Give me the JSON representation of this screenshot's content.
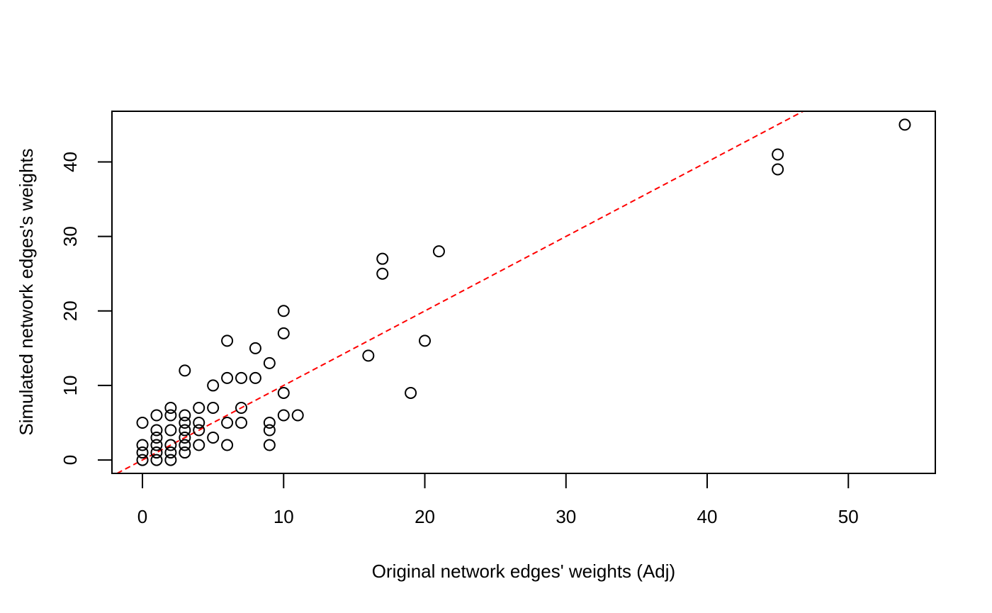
{
  "chart_data": {
    "type": "scatter",
    "title": "",
    "xlabel": "Original network edges' weights (Adj)",
    "ylabel": "Simulated network edges's weights",
    "xlim": [
      -2.16,
      56.16
    ],
    "ylim": [
      -1.8,
      46.8
    ],
    "x_ticks": [
      0,
      10,
      20,
      30,
      40,
      50
    ],
    "y_ticks": [
      0,
      10,
      20,
      30,
      40
    ],
    "grid": false,
    "marker": "open-circle",
    "colors": {
      "points": "#000000",
      "reference_line": "#ff0000"
    },
    "reference_line": {
      "style": "dashed",
      "intercept": 0,
      "slope": 1
    },
    "points": [
      [
        0,
        0
      ],
      [
        0,
        1
      ],
      [
        0,
        2
      ],
      [
        0,
        5
      ],
      [
        1,
        0
      ],
      [
        1,
        1
      ],
      [
        1,
        2
      ],
      [
        1,
        3
      ],
      [
        1,
        4
      ],
      [
        1,
        6
      ],
      [
        2,
        0
      ],
      [
        2,
        1
      ],
      [
        2,
        2
      ],
      [
        2,
        4
      ],
      [
        2,
        6
      ],
      [
        2,
        7
      ],
      [
        3,
        1
      ],
      [
        3,
        2
      ],
      [
        3,
        3
      ],
      [
        3,
        4
      ],
      [
        3,
        5
      ],
      [
        3,
        6
      ],
      [
        3,
        12
      ],
      [
        4,
        2
      ],
      [
        4,
        4
      ],
      [
        4,
        5
      ],
      [
        4,
        7
      ],
      [
        5,
        3
      ],
      [
        5,
        7
      ],
      [
        5,
        10
      ],
      [
        6,
        2
      ],
      [
        6,
        5
      ],
      [
        6,
        11
      ],
      [
        6,
        16
      ],
      [
        7,
        5
      ],
      [
        7,
        7
      ],
      [
        7,
        11
      ],
      [
        8,
        11
      ],
      [
        8,
        15
      ],
      [
        9,
        2
      ],
      [
        9,
        4
      ],
      [
        9,
        5
      ],
      [
        9,
        13
      ],
      [
        10,
        6
      ],
      [
        10,
        9
      ],
      [
        10,
        17
      ],
      [
        10,
        20
      ],
      [
        11,
        6
      ],
      [
        16,
        14
      ],
      [
        17,
        25
      ],
      [
        17,
        27
      ],
      [
        19,
        9
      ],
      [
        20,
        16
      ],
      [
        21,
        28
      ],
      [
        45,
        39
      ],
      [
        45,
        41
      ],
      [
        54,
        45
      ]
    ]
  }
}
